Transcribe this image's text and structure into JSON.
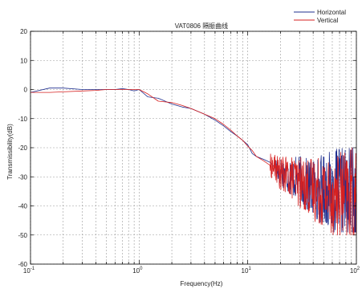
{
  "chart_data": {
    "type": "line",
    "title": "VAT0806 隔振曲线",
    "xlabel": "Frequency(Hz)",
    "ylabel": "Transmissibility(dB)",
    "xscale": "log",
    "xlim": [
      0.1,
      100
    ],
    "ylim": [
      -60,
      20
    ],
    "yticks": [
      20,
      10,
      0,
      -10,
      -20,
      -30,
      -40,
      -50,
      -60
    ],
    "xtick_labels": [
      {
        "value": 0.1,
        "base": "10",
        "exp": "-1"
      },
      {
        "value": 1,
        "base": "10",
        "exp": "0"
      },
      {
        "value": 10,
        "base": "10",
        "exp": "1"
      },
      {
        "value": 100,
        "base": "10",
        "exp": "2"
      }
    ],
    "grid": true,
    "legend_position": "top-right, outside axes",
    "series": [
      {
        "name": "Horizontal",
        "color": "#1f2f8f",
        "x": [
          0.1,
          0.15,
          0.2,
          0.3,
          0.4,
          0.5,
          0.6,
          0.7,
          0.8,
          0.9,
          1.0,
          1.2,
          1.5,
          2,
          2.5,
          3,
          4,
          5,
          6,
          7,
          8,
          9,
          10,
          11,
          12,
          14,
          16,
          18,
          20,
          25,
          30,
          35,
          40,
          50,
          60,
          70,
          80,
          90,
          100
        ],
        "y": [
          -1,
          0.5,
          0.5,
          0,
          0,
          0,
          0,
          0.3,
          0,
          -0.5,
          0,
          -2.5,
          -3,
          -5,
          -6,
          -6.5,
          -8.5,
          -10.5,
          -12.5,
          -14.5,
          -16,
          -17.5,
          -19,
          -22,
          -23,
          -24,
          -25,
          -27,
          -28,
          -30,
          -31,
          -33,
          -34,
          -34,
          -35,
          -35,
          -36,
          -36,
          -38
        ],
        "noise_from_x": 18,
        "noise_band": [
          -49,
          -20
        ]
      },
      {
        "name": "Vertical",
        "color": "#d62020",
        "x": [
          0.1,
          0.15,
          0.2,
          0.3,
          0.4,
          0.5,
          0.6,
          0.7,
          0.8,
          0.9,
          1.0,
          1.2,
          1.5,
          2,
          2.5,
          3,
          4,
          5,
          6,
          7,
          8,
          9,
          10,
          11,
          12,
          14,
          16,
          18,
          20,
          25,
          30,
          35,
          40,
          50,
          60,
          70,
          80,
          90,
          100
        ],
        "y": [
          -1,
          -1,
          -0.8,
          -0.5,
          -0.3,
          0,
          0,
          0,
          0,
          0,
          0,
          -1.5,
          -4,
          -4.5,
          -5.5,
          -6.5,
          -8.5,
          -10,
          -12,
          -14,
          -16,
          -17.5,
          -19.5,
          -21,
          -23,
          -24.5,
          -26,
          -27,
          -29,
          -30,
          -32,
          -33,
          -34,
          -35,
          -36,
          -36,
          -37,
          -37,
          -38
        ],
        "noise_from_x": 16,
        "noise_band": [
          -50,
          -20
        ]
      }
    ]
  }
}
